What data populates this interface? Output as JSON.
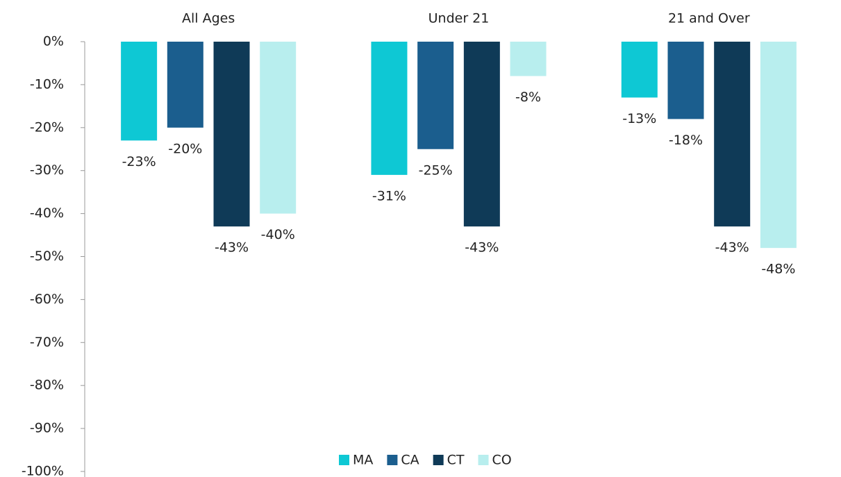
{
  "chart_data": {
    "type": "bar",
    "categories": [
      "All Ages",
      "Under 21",
      "21 and Over"
    ],
    "series": [
      {
        "name": "MA",
        "color": "#0ec8d4",
        "values": [
          -23,
          -31,
          -13
        ],
        "value_labels": [
          "-23%",
          "-31%",
          "-13%"
        ]
      },
      {
        "name": "CA",
        "color": "#1b5e8e",
        "values": [
          -20,
          -25,
          -18
        ],
        "value_labels": [
          "-20%",
          "-25%",
          "-18%"
        ]
      },
      {
        "name": "CT",
        "color": "#0f3a57",
        "values": [
          -43,
          -43,
          -43
        ],
        "value_labels": [
          "-43%",
          "-43%",
          "-43%"
        ]
      },
      {
        "name": "CO",
        "color": "#b8eeee",
        "values": [
          -40,
          -8,
          -48
        ],
        "value_labels": [
          "-40%",
          "-8%",
          "-48%"
        ]
      }
    ],
    "ylim": [
      -100,
      0
    ],
    "yticks": [
      {
        "value": 0,
        "label": "0%"
      },
      {
        "value": -10,
        "label": "-10%"
      },
      {
        "value": -20,
        "label": "-20%"
      },
      {
        "value": -30,
        "label": "-30%"
      },
      {
        "value": -40,
        "label": "-40%"
      },
      {
        "value": -50,
        "label": "-50%"
      },
      {
        "value": -60,
        "label": "-60%"
      },
      {
        "value": -70,
        "label": "-70%"
      },
      {
        "value": -80,
        "label": "-80%"
      },
      {
        "value": -90,
        "label": "-90%"
      },
      {
        "value": -100,
        "label": "-100%"
      }
    ],
    "legend": "bottom"
  }
}
